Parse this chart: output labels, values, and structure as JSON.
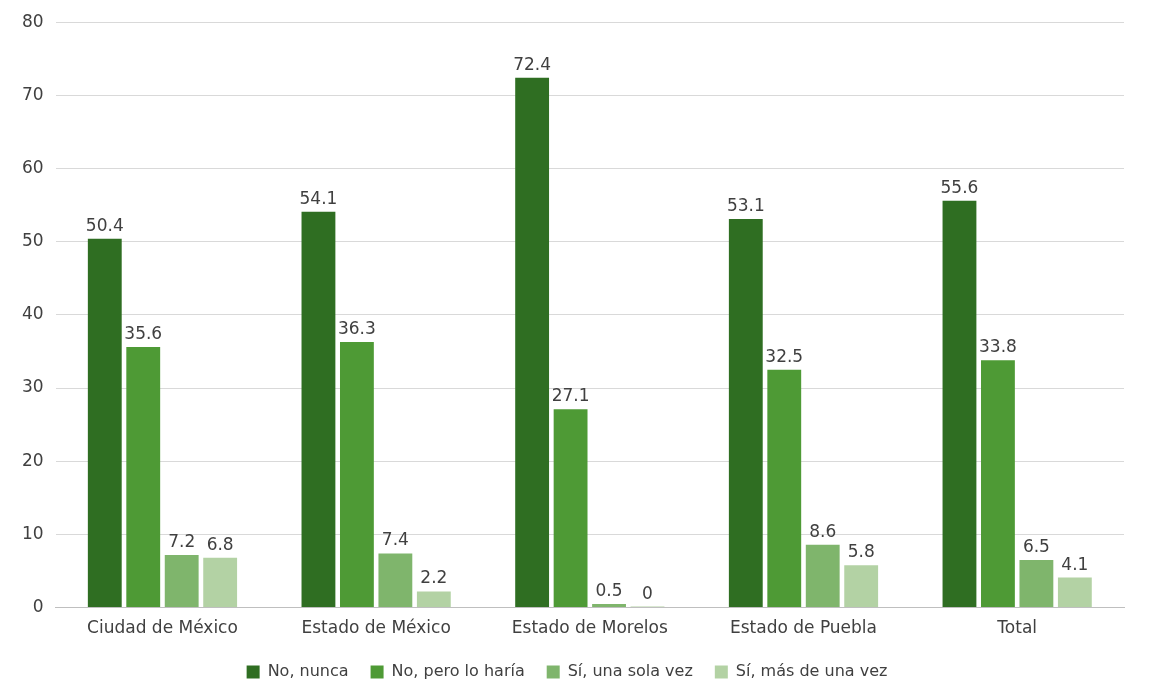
{
  "chart_data": {
    "type": "bar",
    "categories": [
      "Ciudad de México",
      "Estado de México",
      "Estado de Morelos",
      "Estado de Puebla",
      "Total"
    ],
    "series": [
      {
        "name": "No, nunca",
        "color": "#2f6e22",
        "values": [
          50.4,
          54.1,
          72.4,
          53.1,
          55.6
        ]
      },
      {
        "name": "No, pero lo haría",
        "color": "#4e9a35",
        "values": [
          35.6,
          36.3,
          27.1,
          32.5,
          33.8
        ]
      },
      {
        "name": "Sí, una sola vez",
        "color": "#7fb56c",
        "values": [
          7.2,
          7.4,
          0.5,
          8.6,
          6.5
        ]
      },
      {
        "name": "Sí, más de una vez",
        "color": "#b3d2a4",
        "values": [
          6.8,
          2.2,
          0,
          5.8,
          4.1
        ]
      }
    ],
    "ylim": [
      0,
      80
    ],
    "yticks": [
      0,
      10,
      20,
      30,
      40,
      50,
      60,
      70,
      80
    ],
    "grid": "y",
    "legend": "bottom",
    "data_labels": true
  }
}
